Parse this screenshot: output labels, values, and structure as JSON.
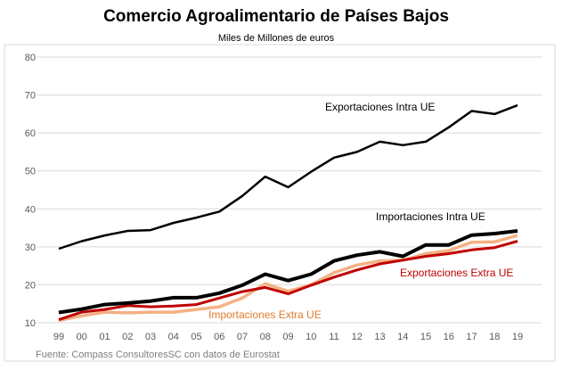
{
  "chart_data": {
    "type": "line",
    "title": "Comercio Agroalimentario de Países Bajos",
    "subtitle": "Miles de Millones de euros",
    "source": "Fuente: Compass ConsultoresSC con datos de Eurostat",
    "categories": [
      "99",
      "00",
      "01",
      "02",
      "03",
      "04",
      "05",
      "06",
      "07",
      "08",
      "09",
      "10",
      "11",
      "12",
      "13",
      "14",
      "15",
      "16",
      "17",
      "18",
      "19"
    ],
    "ylim": [
      10,
      80
    ],
    "yticks": [
      10,
      20,
      30,
      40,
      50,
      60,
      70,
      80
    ],
    "grid": true,
    "series": [
      {
        "name": "Exportaciones  Intra UE",
        "color": "#000000",
        "values": [
          29.5,
          31.5,
          33,
          34.2,
          34.4,
          36.3,
          37.7,
          39.3,
          43.4,
          48.5,
          45.7,
          49.8,
          53.5,
          55,
          57.7,
          56.8,
          57.7,
          61.5,
          65.8,
          65,
          67.3
        ]
      },
      {
        "name": "Importaciones Intra UE",
        "color": "#000000",
        "values": [
          12.7,
          13.6,
          14.8,
          15.2,
          15.7,
          16.6,
          16.6,
          17.8,
          19.9,
          22.8,
          21.1,
          22.8,
          26.3,
          27.8,
          28.7,
          27.5,
          30.5,
          30.5,
          33.1,
          33.5,
          34.2
        ]
      },
      {
        "name": "Importaciones Extra UE",
        "color": "#f4b183",
        "label_color": "#e07b2a",
        "values": [
          10.6,
          11.8,
          12.8,
          12.6,
          12.8,
          12.8,
          13.5,
          14.2,
          16.5,
          20.3,
          18.3,
          20.0,
          23.2,
          25.2,
          26.3,
          26.5,
          28.2,
          29.0,
          31.2,
          31.3,
          33.0
        ]
      },
      {
        "name": "Exportaciones Extra UE",
        "color": "#c00000",
        "values": [
          10.8,
          12.8,
          13.5,
          14.5,
          14.2,
          14.4,
          14.8,
          16.5,
          18.2,
          19.3,
          17.6,
          19.9,
          22.0,
          23.9,
          25.5,
          26.5,
          27.5,
          28.2,
          29.2,
          29.8,
          31.5
        ]
      }
    ]
  }
}
